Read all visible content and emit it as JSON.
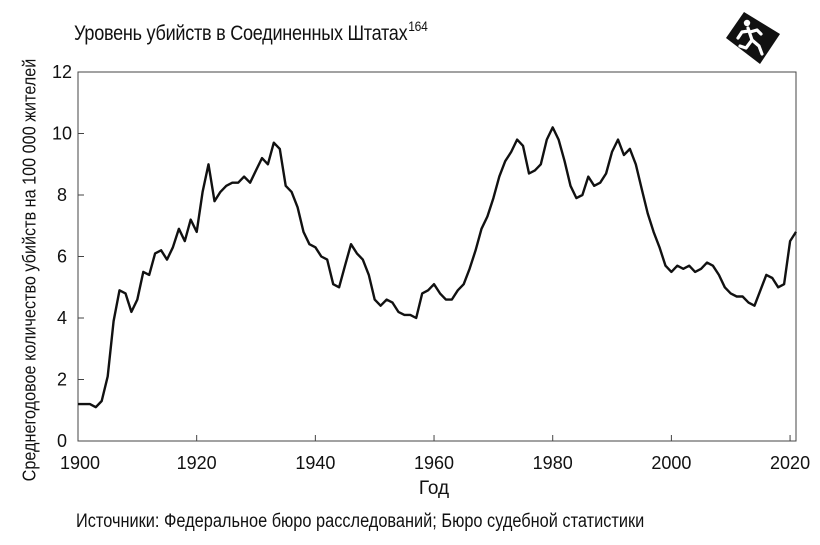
{
  "title": {
    "text": "Уровень убийств в Соединенных Штатах",
    "superscript": "164"
  },
  "source": "Источники: Федеральное бюро расследований; Бюро судебной статистики",
  "icon": "running-figure-icon",
  "chart_data": {
    "type": "line",
    "title": "Уровень убийств в Соединенных Штатах",
    "xlabel": "Год",
    "ylabel": "Среднегодовое количество убийств на 100 000 жителей",
    "xlim": [
      1900,
      2021
    ],
    "ylim": [
      0,
      12
    ],
    "xticks": [
      1900,
      1920,
      1940,
      1960,
      1980,
      2000,
      2020
    ],
    "yticks": [
      0,
      2,
      4,
      6,
      8,
      10,
      12
    ],
    "grid": false,
    "color": "#111111",
    "x": [
      1900,
      1901,
      1902,
      1903,
      1904,
      1905,
      1906,
      1907,
      1908,
      1909,
      1910,
      1911,
      1912,
      1913,
      1914,
      1915,
      1916,
      1917,
      1918,
      1919,
      1920,
      1921,
      1922,
      1923,
      1924,
      1925,
      1926,
      1927,
      1928,
      1929,
      1930,
      1931,
      1932,
      1933,
      1934,
      1935,
      1936,
      1937,
      1938,
      1939,
      1940,
      1941,
      1942,
      1943,
      1944,
      1945,
      1946,
      1947,
      1948,
      1949,
      1950,
      1951,
      1952,
      1953,
      1954,
      1955,
      1956,
      1957,
      1958,
      1959,
      1960,
      1961,
      1962,
      1963,
      1964,
      1965,
      1966,
      1967,
      1968,
      1969,
      1970,
      1971,
      1972,
      1973,
      1974,
      1975,
      1976,
      1977,
      1978,
      1979,
      1980,
      1981,
      1982,
      1983,
      1984,
      1985,
      1986,
      1987,
      1988,
      1989,
      1990,
      1991,
      1992,
      1993,
      1994,
      1995,
      1996,
      1997,
      1998,
      1999,
      2000,
      2001,
      2002,
      2003,
      2004,
      2005,
      2006,
      2007,
      2008,
      2009,
      2010,
      2011,
      2012,
      2013,
      2014,
      2015,
      2016,
      2017,
      2018,
      2019,
      2020,
      2021
    ],
    "y": [
      1.2,
      1.2,
      1.2,
      1.1,
      1.3,
      2.1,
      3.9,
      4.9,
      4.8,
      4.2,
      4.6,
      5.5,
      5.4,
      6.1,
      6.2,
      5.9,
      6.3,
      6.9,
      6.5,
      7.2,
      6.8,
      8.1,
      9.0,
      7.8,
      8.1,
      8.3,
      8.4,
      8.4,
      8.6,
      8.4,
      8.8,
      9.2,
      9.0,
      9.7,
      9.5,
      8.3,
      8.1,
      7.6,
      6.8,
      6.4,
      6.3,
      6.0,
      5.9,
      5.1,
      5.0,
      5.7,
      6.4,
      6.1,
      5.9,
      5.4,
      4.6,
      4.4,
      4.6,
      4.5,
      4.2,
      4.1,
      4.1,
      4.0,
      4.8,
      4.9,
      5.1,
      4.8,
      4.6,
      4.6,
      4.9,
      5.1,
      5.6,
      6.2,
      6.9,
      7.3,
      7.9,
      8.6,
      9.1,
      9.4,
      9.8,
      9.6,
      8.7,
      8.8,
      9.0,
      9.8,
      10.2,
      9.8,
      9.1,
      8.3,
      7.9,
      8.0,
      8.6,
      8.3,
      8.4,
      8.7,
      9.4,
      9.8,
      9.3,
      9.5,
      9.0,
      8.2,
      7.4,
      6.8,
      6.3,
      5.7,
      5.5,
      5.7,
      5.6,
      5.7,
      5.5,
      5.6,
      5.8,
      5.7,
      5.4,
      5.0,
      4.8,
      4.7,
      4.7,
      4.5,
      4.4,
      4.9,
      5.4,
      5.3,
      5.0,
      5.1,
      6.5,
      6.8
    ]
  }
}
